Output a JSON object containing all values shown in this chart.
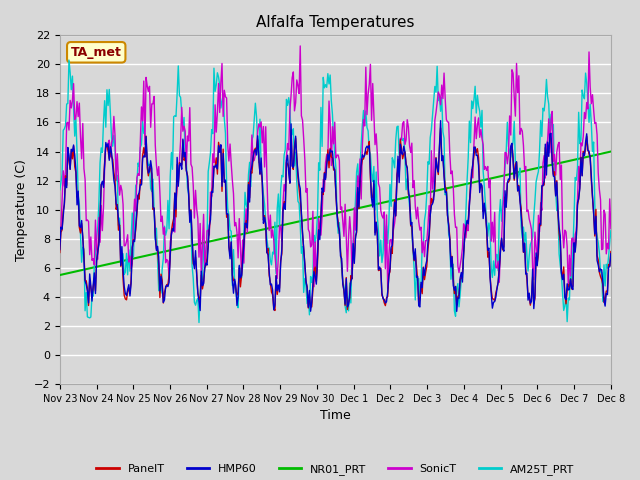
{
  "title": "Alfalfa Temperatures",
  "ylabel": "Temperature (C)",
  "xlabel": "Time",
  "annotation": "TA_met",
  "ylim": [
    -2,
    22
  ],
  "background_color": "#d8d8d8",
  "series_colors": {
    "PanelT": "#cc0000",
    "HMP60": "#0000cc",
    "NR01_PRT": "#00bb00",
    "SonicT": "#cc00cc",
    "AM25T_PRT": "#00cccc"
  },
  "x_tick_labels": [
    "Nov 23",
    "Nov 24",
    "Nov 25",
    "Nov 26",
    "Nov 27",
    "Nov 28",
    "Nov 29",
    "Nov 30",
    "Dec 1",
    "Dec 2",
    "Dec 3",
    "Dec 4",
    "Dec 5",
    "Dec 6",
    "Dec 7",
    "Dec 8"
  ],
  "n_points": 480
}
